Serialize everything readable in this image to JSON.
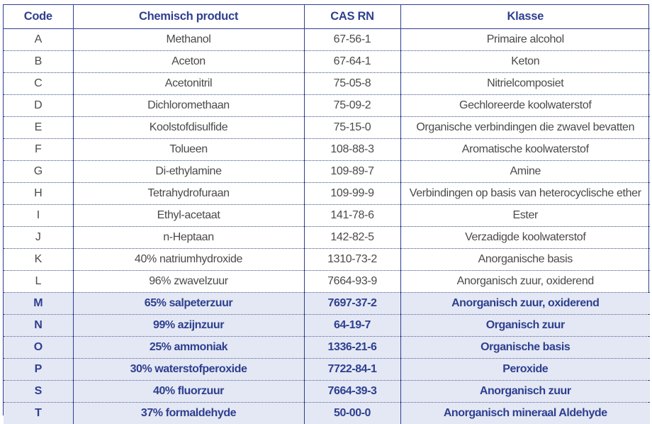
{
  "table": {
    "headers": [
      "Code",
      "Chemisch product",
      "CAS RN",
      "Klasse"
    ],
    "rows": [
      {
        "code": "A",
        "product": "Methanol",
        "cas": "67-56-1",
        "klasse": "Primaire alcohol",
        "highlight": false
      },
      {
        "code": "B",
        "product": "Aceton",
        "cas": "67-64-1",
        "klasse": "Keton",
        "highlight": false
      },
      {
        "code": "C",
        "product": "Acetonitril",
        "cas": "75-05-8",
        "klasse": "Nitrielcomposiet",
        "highlight": false
      },
      {
        "code": "D",
        "product": "Dichloromethaan",
        "cas": "75-09-2",
        "klasse": "Gechloreerde koolwaterstof",
        "highlight": false
      },
      {
        "code": "E",
        "product": "Koolstofdisulfide",
        "cas": "75-15-0",
        "klasse": "Organische verbindingen die zwavel bevatten",
        "highlight": false
      },
      {
        "code": "F",
        "product": "Tolueen",
        "cas": "108-88-3",
        "klasse": "Aromatische koolwaterstof",
        "highlight": false
      },
      {
        "code": "G",
        "product": "Di-ethylamine",
        "cas": "109-89-7",
        "klasse": "Amine",
        "highlight": false
      },
      {
        "code": "H",
        "product": "Tetrahydrofuraan",
        "cas": "109-99-9",
        "klasse": "Verbindingen op basis van heterocyclische ether",
        "highlight": false
      },
      {
        "code": "I",
        "product": "Ethyl-acetaat",
        "cas": "141-78-6",
        "klasse": "Ester",
        "highlight": false
      },
      {
        "code": "J",
        "product": "n-Heptaan",
        "cas": "142-82-5",
        "klasse": "Verzadigde koolwaterstof",
        "highlight": false
      },
      {
        "code": "K",
        "product": "40% natriumhydroxide",
        "cas": "1310-73-2",
        "klasse": "Anorganische basis",
        "highlight": false
      },
      {
        "code": "L",
        "product": "96% zwavelzuur",
        "cas": "7664-93-9",
        "klasse": "Anorganisch zuur, oxiderend",
        "highlight": false
      },
      {
        "code": "M",
        "product": "65% salpeterzuur",
        "cas": "7697-37-2",
        "klasse": "Anorganisch zuur, oxiderend",
        "highlight": true
      },
      {
        "code": "N",
        "product": "99% azijnzuur",
        "cas": "64-19-7",
        "klasse": "Organisch zuur",
        "highlight": true
      },
      {
        "code": "O",
        "product": "25% ammoniak",
        "cas": "1336-21-6",
        "klasse": "Organische basis",
        "highlight": true
      },
      {
        "code": "P",
        "product": "30% waterstofperoxide",
        "cas": "7722-84-1",
        "klasse": "Peroxide",
        "highlight": true
      },
      {
        "code": "S",
        "product": "40% fluorzuur",
        "cas": "7664-39-3",
        "klasse": "Anorganisch zuur",
        "highlight": true
      },
      {
        "code": "T",
        "product": "37% formaldehyde",
        "cas": "50-00-0",
        "klasse": "Anorganisch mineraal Aldehyde",
        "highlight": true
      }
    ]
  },
  "colors": {
    "header_text": "#2e3f8f",
    "border": "#2e3f8f",
    "highlight_bg": "#e4e8f4",
    "body_text": "#4a4a4a"
  }
}
